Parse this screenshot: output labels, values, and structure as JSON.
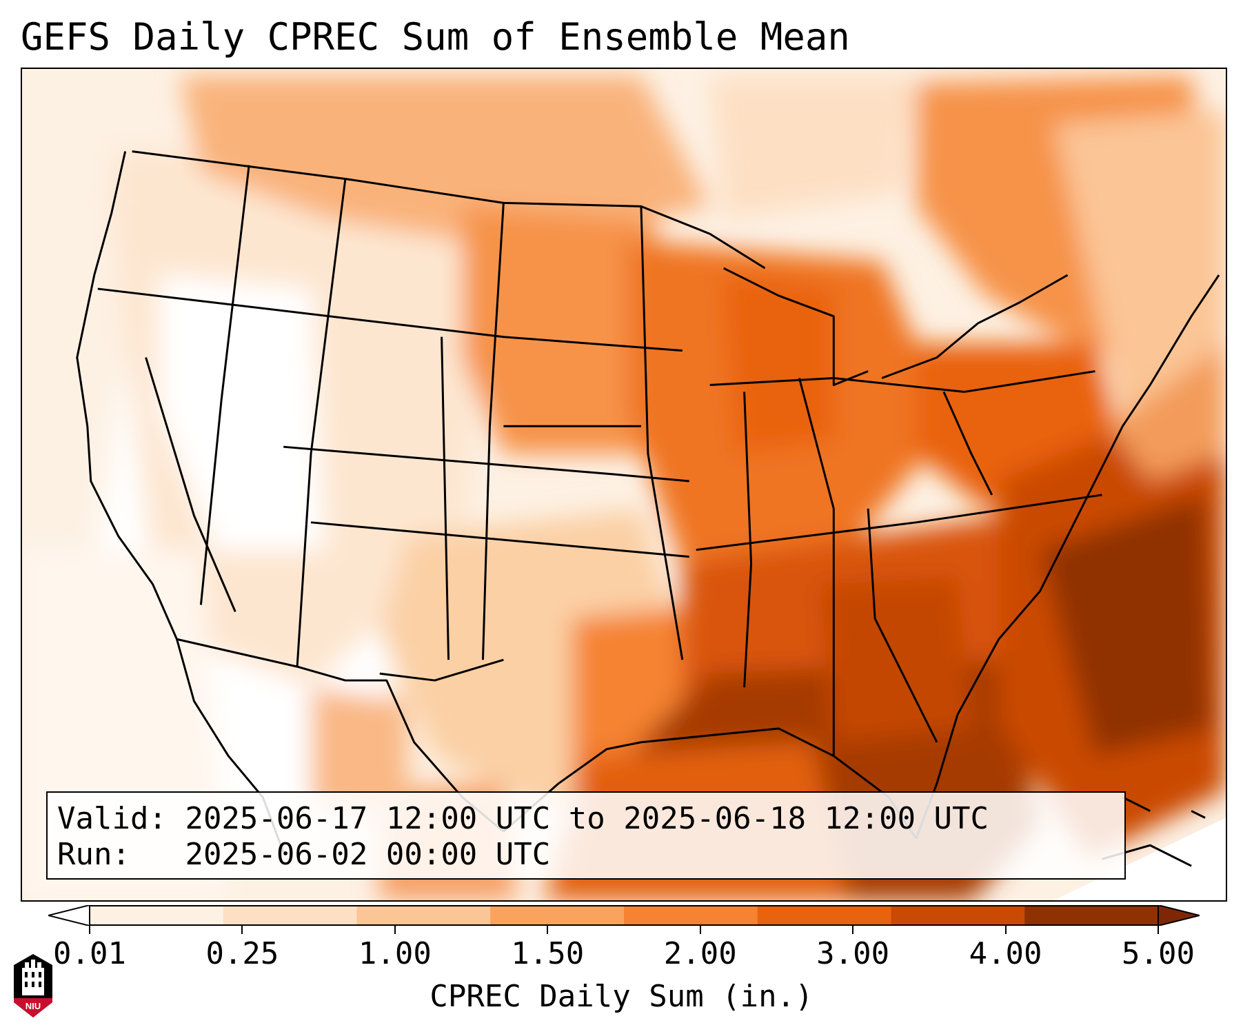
{
  "title": "GEFS Daily CPREC Sum of Ensemble Mean",
  "info": {
    "valid_label": "Valid:",
    "valid_text": "2025-06-17 12:00 UTC to 2025-06-18 12:00 UTC",
    "run_label": "Run:",
    "run_text": "2025-06-02 00:00 UTC"
  },
  "colorbar": {
    "label": "CPREC Daily Sum (in.)",
    "ticks": [
      "0.01",
      "0.25",
      "1.00",
      "1.50",
      "2.00",
      "3.00",
      "4.00",
      "5.00"
    ],
    "colors": [
      "#fdf1e4",
      "#fde0c4",
      "#fbc595",
      "#f9a35f",
      "#f58331",
      "#e9620e",
      "#ca4a03",
      "#8f3203"
    ],
    "under_color": "#ffffff",
    "over_color": "#7f2704"
  },
  "logo": {
    "text": "NIU",
    "icon": "niu-logo-icon"
  },
  "map": {
    "region": "Contiguous United States",
    "field": "precipitation-shading",
    "borders": "state-and-country-outlines"
  }
}
